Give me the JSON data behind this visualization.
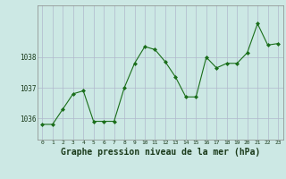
{
  "x": [
    0,
    1,
    2,
    3,
    4,
    5,
    6,
    7,
    8,
    9,
    10,
    11,
    12,
    13,
    14,
    15,
    16,
    17,
    18,
    19,
    20,
    21,
    22,
    23
  ],
  "y": [
    1035.8,
    1035.8,
    1036.3,
    1036.8,
    1036.9,
    1035.9,
    1035.9,
    1035.9,
    1037.0,
    1037.8,
    1038.35,
    1038.25,
    1037.85,
    1037.35,
    1036.7,
    1036.7,
    1038.0,
    1037.65,
    1037.8,
    1037.8,
    1038.15,
    1039.1,
    1038.4,
    1038.45
  ],
  "line_color": "#1a6e1a",
  "marker_color": "#1a6e1a",
  "bg_color": "#cce8e4",
  "grid_color": "#b0b8cc",
  "xlabel": "Graphe pression niveau de la mer (hPa)",
  "xlabel_fontsize": 7,
  "ylabel_ticks": [
    1036,
    1037,
    1038
  ],
  "ylim": [
    1035.3,
    1039.7
  ],
  "xlim": [
    -0.5,
    23.5
  ],
  "axis_label_color": "#1a3a1a",
  "spine_color": "#888888"
}
